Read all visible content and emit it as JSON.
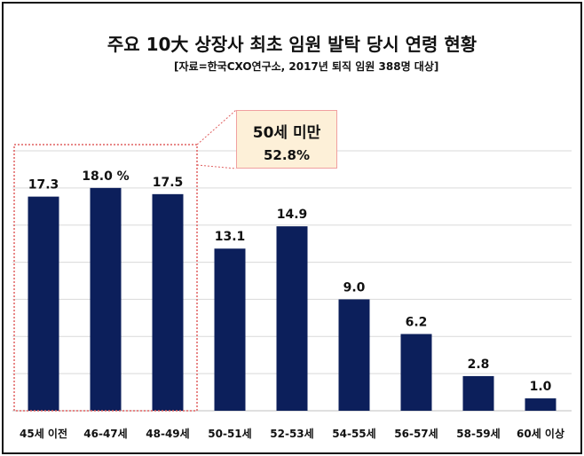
{
  "chart_data": {
    "type": "bar",
    "title": "주요 10大 상장사 최초 임원 발탁 당시 연령 현황",
    "subtitle": "[자료=한국CXO연구소, 2017년 퇴직 임원 388명 대상]",
    "categories": [
      "45세 이전",
      "46-47세",
      "48-49세",
      "50-51세",
      "52-53세",
      "54-55세",
      "56-57세",
      "58-59세",
      "60세 이상"
    ],
    "values": [
      17.3,
      18.0,
      17.5,
      13.1,
      14.9,
      9.0,
      6.2,
      2.8,
      1.0
    ],
    "value_labels": [
      "17.3",
      "18.0 %",
      "17.5",
      "13.1",
      "14.9",
      "9.0",
      "6.2",
      "2.8",
      "1.0"
    ],
    "ylim": [
      0,
      21
    ],
    "bar_color": "#0c1f5b",
    "grid": true,
    "annotation": {
      "label": "50세 미만",
      "value": "52.8%",
      "box_fill": "#fdf0d8",
      "border_color": "#f0a0a0"
    }
  }
}
